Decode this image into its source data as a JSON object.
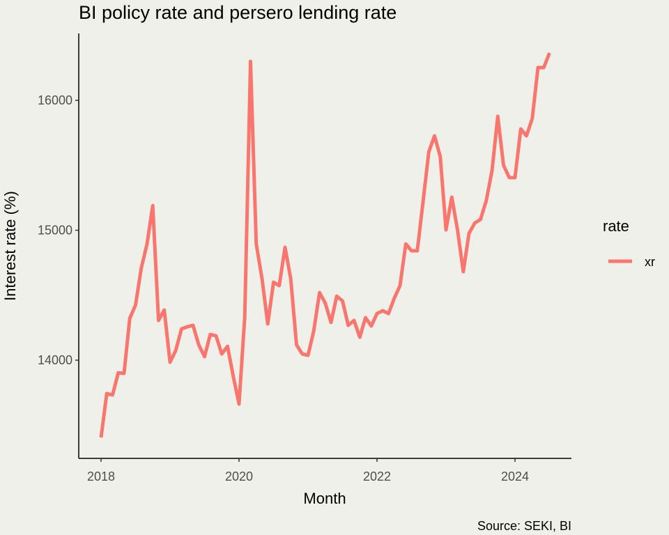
{
  "chart_data": {
    "type": "line",
    "title": "BI policy rate and persero lending rate",
    "xlabel": "Month",
    "ylabel": "Interest rate (%)",
    "caption": "Source: SEKI, BI",
    "xlim": [
      2017.677,
      2024.818
    ],
    "ylim": [
      13244,
      16515
    ],
    "x_ticks": [
      2018,
      2020,
      2022,
      2024
    ],
    "x_tick_labels": [
      "2018",
      "2020",
      "2022",
      "2024"
    ],
    "y_ticks": [
      14000,
      15000,
      16000
    ],
    "y_tick_labels": [
      "14000",
      "15000",
      "16000"
    ],
    "grid": false,
    "legend": {
      "title": "rate",
      "position": "right",
      "entries": [
        "xr"
      ]
    },
    "series": [
      {
        "name": "xr",
        "color": "#f8766d",
        "start": "2018-01",
        "frequency": "monthly",
        "values": [
          13405,
          13743,
          13732,
          13903,
          13898,
          14322,
          14424,
          14708,
          14895,
          15190,
          14306,
          14386,
          13984,
          14075,
          14241,
          14257,
          14268,
          14118,
          14027,
          14198,
          14188,
          14048,
          14107,
          13877,
          13662,
          14332,
          16300,
          14895,
          14627,
          14279,
          14600,
          14574,
          14869,
          14627,
          14118,
          14048,
          14037,
          14225,
          14520,
          14440,
          14290,
          14493,
          14456,
          14268,
          14306,
          14177,
          14327,
          14263,
          14359,
          14381,
          14359,
          14477,
          14574,
          14895,
          14842,
          14842,
          15217,
          15603,
          15727,
          15566,
          15003,
          15255,
          15003,
          14681,
          14976,
          15056,
          15083,
          15228,
          15458,
          15877,
          15501,
          15405,
          15405,
          15780,
          15727,
          15861,
          16252,
          16252,
          16365
        ]
      }
    ]
  }
}
